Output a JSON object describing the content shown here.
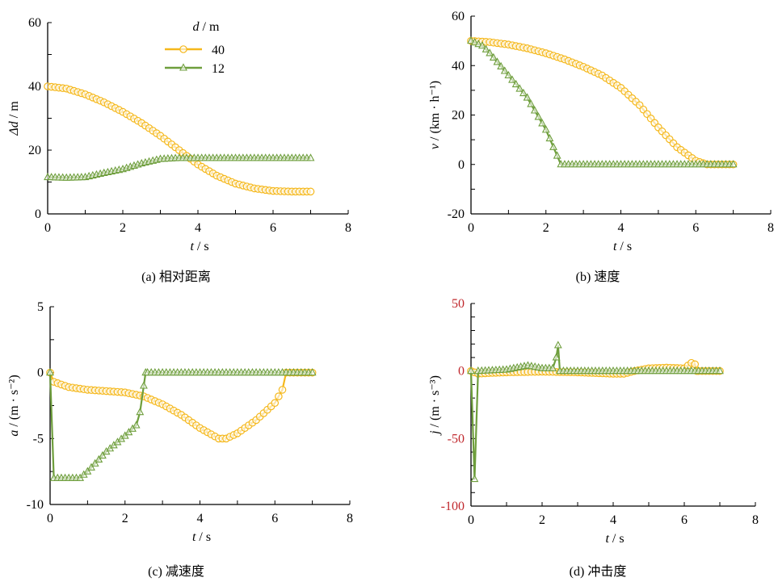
{
  "colors": {
    "s40": "#f5b81c",
    "s12": "#6e9e3c",
    "axis": "#000000",
    "red_ticks": "#c0282d"
  },
  "legend": {
    "title_var": "d",
    "title_unit": " / m",
    "entries": [
      {
        "label": "40",
        "marker": "circle"
      },
      {
        "label": "12",
        "marker": "triangle"
      }
    ]
  },
  "chart_data": [
    {
      "type": "line",
      "id": "a",
      "caption": "(a) 相对距离",
      "xlabel_var": "t",
      "xlabel_unit": " / s",
      "ylabel_var": "Δd",
      "ylabel_unit": " / m",
      "xlim": [
        0,
        8
      ],
      "ylim": [
        0,
        60
      ],
      "xticks": [
        0,
        2,
        4,
        6,
        8
      ],
      "yticks": [
        0,
        20,
        40,
        60
      ],
      "xminor": 1,
      "yminor": 10,
      "red_ticks": false,
      "series": [
        {
          "name": "40",
          "t": [
            0,
            0.5,
            1,
            1.5,
            2,
            2.5,
            3,
            3.5,
            4,
            4.5,
            5,
            5.5,
            6,
            6.5,
            7
          ],
          "y": [
            40,
            39.3,
            37.5,
            35,
            32,
            28.5,
            24.5,
            20,
            15.5,
            12,
            9.5,
            8,
            7.2,
            7,
            7
          ]
        },
        {
          "name": "12",
          "t": [
            0,
            0.5,
            1,
            1.5,
            2,
            2.5,
            3,
            3.5,
            7
          ],
          "y": [
            11.5,
            11.3,
            11.5,
            12.8,
            14,
            15.8,
            17.2,
            17.5,
            17.5
          ]
        }
      ]
    },
    {
      "type": "line",
      "id": "b",
      "caption": "(b) 速度",
      "xlabel_var": "t",
      "xlabel_unit": " / s",
      "ylabel_var": "v",
      "ylabel_unit": " / (km · h⁻¹)",
      "xlim": [
        0,
        8
      ],
      "ylim": [
        -20,
        60
      ],
      "xticks": [
        0,
        2,
        4,
        6,
        8
      ],
      "yticks": [
        -20,
        0,
        20,
        40,
        60
      ],
      "xminor": 1,
      "yminor": 10,
      "red_ticks": false,
      "series": [
        {
          "name": "40",
          "t": [
            0,
            0.5,
            1,
            1.5,
            2,
            2.5,
            3,
            3.5,
            4,
            4.5,
            5,
            5.5,
            6,
            6.3,
            7
          ],
          "y": [
            50,
            49.5,
            48.5,
            47,
            45,
            42.5,
            39.5,
            36,
            31,
            24,
            15,
            7,
            1.5,
            0,
            0
          ]
        },
        {
          "name": "12",
          "t": [
            0,
            0.3,
            0.5,
            1,
            1.5,
            2,
            2.4,
            7
          ],
          "y": [
            50,
            48,
            45,
            36,
            27,
            14,
            0,
            0
          ]
        }
      ]
    },
    {
      "type": "line",
      "id": "c",
      "caption": "(c) 减速度",
      "xlabel_var": "t",
      "xlabel_unit": " / s",
      "ylabel_var": "a",
      "ylabel_unit": " / (m · s⁻²)",
      "xlim": [
        0,
        8
      ],
      "ylim": [
        -10,
        5
      ],
      "xticks": [
        0,
        2,
        4,
        6,
        8
      ],
      "yticks": [
        -10,
        -5,
        0,
        5
      ],
      "xminor": 1,
      "yminor": 2.5,
      "red_ticks": false,
      "series": [
        {
          "name": "40",
          "t": [
            0,
            0.1,
            0.5,
            1,
            1.5,
            2,
            2.5,
            3,
            3.5,
            4,
            4.5,
            4.7,
            5,
            5.5,
            6,
            6.2,
            6.3,
            7
          ],
          "y": [
            0,
            -0.7,
            -1.1,
            -1.3,
            -1.4,
            -1.5,
            -1.8,
            -2.4,
            -3.2,
            -4.2,
            -5,
            -5,
            -4.6,
            -3.6,
            -2.3,
            -1.3,
            0,
            0
          ]
        },
        {
          "name": "12",
          "t": [
            0,
            0.1,
            0.5,
            0.8,
            1,
            1.5,
            2,
            2.3,
            2.4,
            2.5,
            2.55,
            7
          ],
          "y": [
            0,
            -8,
            -8,
            -8,
            -7.5,
            -6,
            -4.8,
            -4,
            -3,
            -1,
            0,
            0
          ]
        }
      ]
    },
    {
      "type": "line",
      "id": "d",
      "caption": "(d) 冲击度",
      "xlabel_var": "t",
      "xlabel_unit": " / s",
      "ylabel_var": "j",
      "ylabel_unit": " / (m · s⁻³)",
      "xlim": [
        0,
        8
      ],
      "ylim": [
        -100,
        50
      ],
      "xticks": [
        0,
        2,
        4,
        6,
        8
      ],
      "yticks": [
        -100,
        -50,
        0,
        50
      ],
      "xminor": 1,
      "yminor": 10,
      "red_ticks": true,
      "series": [
        {
          "name": "40",
          "t": [
            0,
            0.2,
            0.5,
            1,
            2,
            3,
            3.5,
            4,
            4.3,
            4.6,
            5,
            5.5,
            6,
            6.2,
            6.3,
            6.35,
            7
          ],
          "y": [
            0,
            -2,
            -1.5,
            -1,
            -0.5,
            -1,
            -1.5,
            -2,
            -2,
            0,
            2,
            2.5,
            2,
            6,
            5,
            0,
            0
          ]
        },
        {
          "name": "12",
          "t": [
            0,
            0.1,
            0.2,
            1,
            1.6,
            2,
            2.3,
            2.4,
            2.45,
            2.5,
            7
          ],
          "y": [
            0,
            -80,
            0,
            1,
            4,
            2,
            2,
            10,
            19,
            0,
            0
          ]
        }
      ]
    }
  ]
}
